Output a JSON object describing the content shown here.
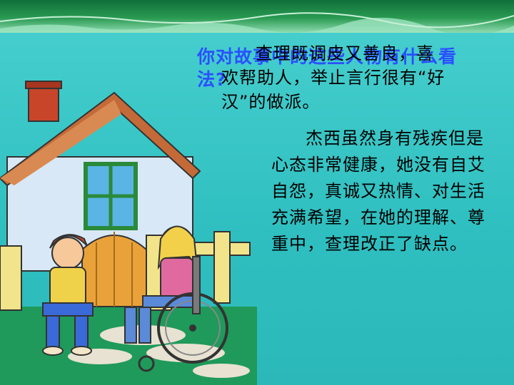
{
  "slide": {
    "question": "你对故事中的这些人物有什么看法?",
    "paragraph1": "查理既调皮又善良，喜欢帮助人，举止言行很有“好汉”的做派。",
    "paragraph2": "杰西虽然身有残疾但是心态非常健康，她没有自艾自怨，真诚又热情、对生活充满希望，在她的理解、尊重中，查理改正了缺点。"
  },
  "colors": {
    "background": "#3ec4c4",
    "question_text": "#2a50ff",
    "body_text": "#000000",
    "top_band": "#0f6f3a"
  },
  "illustration": {
    "subject": "boy-and-girl-in-wheelchair-in-front-of-house"
  }
}
